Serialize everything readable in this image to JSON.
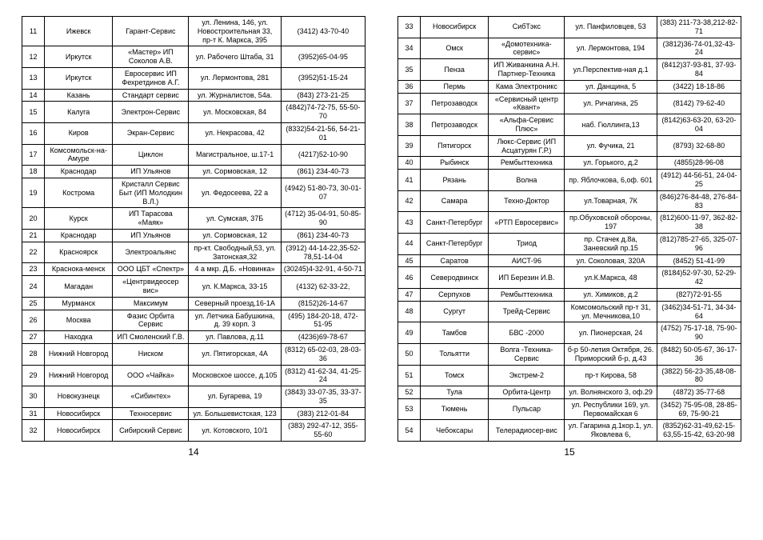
{
  "page_left_num": "14",
  "page_right_num": "15",
  "left": [
    {
      "n": "11",
      "city": "Ижевск",
      "org": "Гарант-Сервис",
      "addr": "ул. Ленина, 146, ул. Новостроительная 33, пр-т К. Маркса, 395",
      "ph": "(3412) 43-70-40"
    },
    {
      "n": "12",
      "city": "Иркутск",
      "org": "«Мастер» ИП Соколов А.В.",
      "addr": "ул. Рабочего Штаба, 31",
      "ph": "(3952)65-04-95"
    },
    {
      "n": "13",
      "city": "Иркутск",
      "org": "Евросервис ИП Фехретдинов А.Г.",
      "addr": "ул. Лермонтова, 281",
      "ph": "(3952)51-15-24"
    },
    {
      "n": "14",
      "city": "Казань",
      "org": "Стандарт сервис",
      "addr": "ул. Журналистов, 54а.",
      "ph": "(843) 273-21-25"
    },
    {
      "n": "15",
      "city": "Калуга",
      "org": "Электрон-Сервис",
      "addr": "ул. Московская, 84",
      "ph": "(4842)74-72-75, 55-50-70"
    },
    {
      "n": "16",
      "city": "Киров",
      "org": "Экран-Сервис",
      "addr": "ул. Некрасова, 42",
      "ph": "(8332)54-21-56, 54-21-01"
    },
    {
      "n": "17",
      "city": "Комсомольск-на-Амуре",
      "org": "Циклон",
      "addr": "Магистральное, ш.17-1",
      "ph": "(4217)52-10-90"
    },
    {
      "n": "18",
      "city": "Краснодар",
      "org": "ИП Ульянов",
      "addr": "ул. Сормовская, 12",
      "ph": "(861) 234-40-73"
    },
    {
      "n": "19",
      "city": "Кострома",
      "org": "Кристалл Сервис Быт (ИП Молодкин В.Л.)",
      "addr": "ул. Федосеева, 22 а",
      "ph": "(4942) 51-80-73, 30-01-07"
    },
    {
      "n": "20",
      "city": "Курск",
      "org": "ИП Тарасова «Маяк»",
      "addr": "ул. Сумская, 37Б",
      "ph": "(4712) 35-04-91, 50-85-90"
    },
    {
      "n": "21",
      "city": "Краснодар",
      "org": "ИП Ульянов",
      "addr": "ул. Сормовская, 12",
      "ph": "(861) 234-40-73"
    },
    {
      "n": "22",
      "city": "Красноярск",
      "org": "Электроальянс",
      "addr": "пр-кт. Свободный,53, ул. Затонская,32",
      "ph": "(3912) 44-14-22,35-52-78,51-14-04"
    },
    {
      "n": "23",
      "city": "Краснока-менск",
      "org": "ООО ЦБТ «Спектр»",
      "addr": "4 а мкр. Д.Б. «Новинка»",
      "ph": "(30245)4-32-91, 4-50-71"
    },
    {
      "n": "24",
      "city": "Магадан",
      "org": "«Центрвидеосер вис»",
      "addr": "ул. К.Маркса, 33-15",
      "ph": "(4132) 62-33-22,"
    },
    {
      "n": "25",
      "city": "Мурманск",
      "org": "Максимум",
      "addr": "Северный проезд,16-1А",
      "ph": "(8152)26-14-67"
    },
    {
      "n": "26",
      "city": "Москва",
      "org": "Фазис Орбита Сервис",
      "addr": "ул. Летчика Бабушкина, д. 39 корп. 3",
      "ph": "(495) 184-20-18, 472-51-95"
    },
    {
      "n": "27",
      "city": "Находка",
      "org": "ИП Смоленский Г.В.",
      "addr": "ул. Павлова, д.11",
      "ph": "(4236)69-78-67"
    },
    {
      "n": "28",
      "city": "Нижний Новгород",
      "org": "Ниском",
      "addr": "ул. Пятигорская, 4А",
      "ph": "(8312) 65-02-03, 28-03-36"
    },
    {
      "n": "29",
      "city": "Нижний Новгород",
      "org": "ООО «Чайка»",
      "addr": "Московское шоссе, д.105",
      "ph": "(8312) 41-62-34, 41-25-24"
    },
    {
      "n": "30",
      "city": "Новокузнецк",
      "org": "«Сибинтех»",
      "addr": "ул. Бугарева, 19",
      "ph": "(3843) 33-07-35, 33-37-35"
    },
    {
      "n": "31",
      "city": "Новосибирск",
      "org": "Техносервис",
      "addr": "ул. Большевистская, 123",
      "ph": "(383) 212-01-84"
    },
    {
      "n": "32",
      "city": "Новосибирск",
      "org": "Сибирский Сервис",
      "addr": "ул. Котовского, 10/1",
      "ph": "(383) 292-47-12, 355-55-60"
    }
  ],
  "right": [
    {
      "n": "33",
      "city": "Новосибирск",
      "org": "СибТэкс",
      "addr": "ул. Панфиловцев, 53",
      "ph": "(383) 211-73-38,212-82-71"
    },
    {
      "n": "34",
      "city": "Омск",
      "org": "«Домотехника-сервис»",
      "addr": "ул. Лермонтова, 194",
      "ph": "(3812)36-74-01,32-43-24"
    },
    {
      "n": "35",
      "city": "Пенза",
      "org": "ИП Живанкина А.Н. Партнер-Техника",
      "addr": "ул.Перспектив-ная д.1",
      "ph": "(8412)37-93-81, 37-93-84"
    },
    {
      "n": "36",
      "city": "Пермь",
      "org": "Кама Электроникс",
      "addr": "ул. Данщина, 5",
      "ph": "(3422) 18-18-86"
    },
    {
      "n": "37",
      "city": "Петрозаводск",
      "org": "«Сервисный центр «Квант»",
      "addr": "ул. Ричагина, 25",
      "ph": "(8142) 79-62-40"
    },
    {
      "n": "38",
      "city": "Петрозаводск",
      "org": "«Альфа-Сервис Плюс»",
      "addr": "наб. Гюллинга,13",
      "ph": "(8142)63-63-20, 63-20-04"
    },
    {
      "n": "39",
      "city": "Пятигорск",
      "org": "Люкс-Сервис (ИП Асцатурян Г.Р.)",
      "addr": "ул. Фучика, 21",
      "ph": "(8793) 32-68-80"
    },
    {
      "n": "40",
      "city": "Рыбинск",
      "org": "Рембыттехника",
      "addr": "ул. Горького, д,2",
      "ph": "(4855)28-96-08"
    },
    {
      "n": "41",
      "city": "Рязань",
      "org": "Волна",
      "addr": "пр. Яблочкова, 6,оф. 601",
      "ph": "(4912) 44-56-51, 24-04-25"
    },
    {
      "n": "42",
      "city": "Самара",
      "org": "Техно-Доктор",
      "addr": "ул.Товарная, 7К",
      "ph": "(846)276-84-48, 276-84-83"
    },
    {
      "n": "43",
      "city": "Санкт-Петербург",
      "org": "«РТП Евросервис»",
      "addr": "пр.Обуховской обороны, 197",
      "ph": "(812)600-11-97, 362-82-38"
    },
    {
      "n": "44",
      "city": "Санкт-Петербург",
      "org": "Триод",
      "addr": "пр. Стачек д.8а, Заневский пр.15",
      "ph": "(812)785-27-65, 325-07-96"
    },
    {
      "n": "45",
      "city": "Саратов",
      "org": "АИСТ-96",
      "addr": "ул. Соколовая, 320А",
      "ph": "(8452) 51-41-99"
    },
    {
      "n": "46",
      "city": "Северодвинск",
      "org": "ИП Березин И.В.",
      "addr": "ул.К.Маркса, 48",
      "ph": "(8184)52-97-30, 52-29-42"
    },
    {
      "n": "47",
      "city": "Серпухов",
      "org": "Рембыттехника",
      "addr": "ул. Химиков, д.2",
      "ph": "(827)72-91-55"
    },
    {
      "n": "48",
      "city": "Сургут",
      "org": "Трейд-Сервис",
      "addr": "Комсомольский пр-т 31, ул. Мечникова,10",
      "ph": "(3462)34-51-71, 34-34-64"
    },
    {
      "n": "49",
      "city": "Тамбов",
      "org": "БВС -2000",
      "addr": "ул. Пионерская, 24",
      "ph": "(4752) 75-17-18, 75-90-90"
    },
    {
      "n": "50",
      "city": "Тольятти",
      "org": "Волга -Техника-Сервис",
      "addr": "б-р 50-летия Октября, 26. Приморский б-р, д.43",
      "ph": "(8482) 50-05-67, 36-17-36"
    },
    {
      "n": "51",
      "city": "Томск",
      "org": "Экстрем-2",
      "addr": "пр-т Кирова, 58",
      "ph": "(3822) 56-23-35,48-08-80"
    },
    {
      "n": "52",
      "city": "Тула",
      "org": "Орбита-Центр",
      "addr": "ул. Волнянского 3, оф.29",
      "ph": "(4872) 35-77-68"
    },
    {
      "n": "53",
      "city": "Тюмень",
      "org": "Пульсар",
      "addr": "ул. Республики 169, ул. Первомайская 6",
      "ph": "(3452) 75-95-08, 28-85-69, 75-90-21"
    },
    {
      "n": "54",
      "city": "Чебоксары",
      "org": "Телерадиосер-вис",
      "addr": "ул. Гагарина д.1кор.1, ул. Яковлева 6,",
      "ph": "(8352)62-31-49,62-15-63,55-15-42, 63-20-98"
    }
  ]
}
